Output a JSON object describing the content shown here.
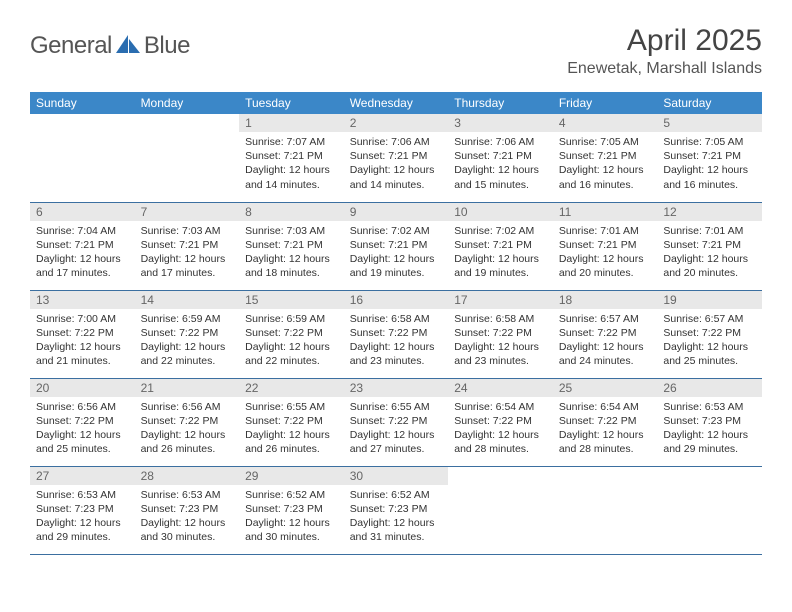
{
  "logo": {
    "general": "General",
    "blue": "Blue"
  },
  "title": "April 2025",
  "location": "Enewetak, Marshall Islands",
  "colors": {
    "header_bg": "#3b87c8",
    "header_text": "#ffffff",
    "daynum_bg": "#e8e8e8",
    "daynum_text": "#666666",
    "body_text": "#333333",
    "row_border": "#3b6fa0",
    "logo_text": "#555555",
    "logo_icon": "#2a6db0"
  },
  "day_names": [
    "Sunday",
    "Monday",
    "Tuesday",
    "Wednesday",
    "Thursday",
    "Friday",
    "Saturday"
  ],
  "weeks": [
    [
      null,
      null,
      {
        "n": "1",
        "sunrise": "7:07 AM",
        "sunset": "7:21 PM",
        "daylight": "12 hours and 14 minutes."
      },
      {
        "n": "2",
        "sunrise": "7:06 AM",
        "sunset": "7:21 PM",
        "daylight": "12 hours and 14 minutes."
      },
      {
        "n": "3",
        "sunrise": "7:06 AM",
        "sunset": "7:21 PM",
        "daylight": "12 hours and 15 minutes."
      },
      {
        "n": "4",
        "sunrise": "7:05 AM",
        "sunset": "7:21 PM",
        "daylight": "12 hours and 16 minutes."
      },
      {
        "n": "5",
        "sunrise": "7:05 AM",
        "sunset": "7:21 PM",
        "daylight": "12 hours and 16 minutes."
      }
    ],
    [
      {
        "n": "6",
        "sunrise": "7:04 AM",
        "sunset": "7:21 PM",
        "daylight": "12 hours and 17 minutes."
      },
      {
        "n": "7",
        "sunrise": "7:03 AM",
        "sunset": "7:21 PM",
        "daylight": "12 hours and 17 minutes."
      },
      {
        "n": "8",
        "sunrise": "7:03 AM",
        "sunset": "7:21 PM",
        "daylight": "12 hours and 18 minutes."
      },
      {
        "n": "9",
        "sunrise": "7:02 AM",
        "sunset": "7:21 PM",
        "daylight": "12 hours and 19 minutes."
      },
      {
        "n": "10",
        "sunrise": "7:02 AM",
        "sunset": "7:21 PM",
        "daylight": "12 hours and 19 minutes."
      },
      {
        "n": "11",
        "sunrise": "7:01 AM",
        "sunset": "7:21 PM",
        "daylight": "12 hours and 20 minutes."
      },
      {
        "n": "12",
        "sunrise": "7:01 AM",
        "sunset": "7:21 PM",
        "daylight": "12 hours and 20 minutes."
      }
    ],
    [
      {
        "n": "13",
        "sunrise": "7:00 AM",
        "sunset": "7:22 PM",
        "daylight": "12 hours and 21 minutes."
      },
      {
        "n": "14",
        "sunrise": "6:59 AM",
        "sunset": "7:22 PM",
        "daylight": "12 hours and 22 minutes."
      },
      {
        "n": "15",
        "sunrise": "6:59 AM",
        "sunset": "7:22 PM",
        "daylight": "12 hours and 22 minutes."
      },
      {
        "n": "16",
        "sunrise": "6:58 AM",
        "sunset": "7:22 PM",
        "daylight": "12 hours and 23 minutes."
      },
      {
        "n": "17",
        "sunrise": "6:58 AM",
        "sunset": "7:22 PM",
        "daylight": "12 hours and 23 minutes."
      },
      {
        "n": "18",
        "sunrise": "6:57 AM",
        "sunset": "7:22 PM",
        "daylight": "12 hours and 24 minutes."
      },
      {
        "n": "19",
        "sunrise": "6:57 AM",
        "sunset": "7:22 PM",
        "daylight": "12 hours and 25 minutes."
      }
    ],
    [
      {
        "n": "20",
        "sunrise": "6:56 AM",
        "sunset": "7:22 PM",
        "daylight": "12 hours and 25 minutes."
      },
      {
        "n": "21",
        "sunrise": "6:56 AM",
        "sunset": "7:22 PM",
        "daylight": "12 hours and 26 minutes."
      },
      {
        "n": "22",
        "sunrise": "6:55 AM",
        "sunset": "7:22 PM",
        "daylight": "12 hours and 26 minutes."
      },
      {
        "n": "23",
        "sunrise": "6:55 AM",
        "sunset": "7:22 PM",
        "daylight": "12 hours and 27 minutes."
      },
      {
        "n": "24",
        "sunrise": "6:54 AM",
        "sunset": "7:22 PM",
        "daylight": "12 hours and 28 minutes."
      },
      {
        "n": "25",
        "sunrise": "6:54 AM",
        "sunset": "7:22 PM",
        "daylight": "12 hours and 28 minutes."
      },
      {
        "n": "26",
        "sunrise": "6:53 AM",
        "sunset": "7:23 PM",
        "daylight": "12 hours and 29 minutes."
      }
    ],
    [
      {
        "n": "27",
        "sunrise": "6:53 AM",
        "sunset": "7:23 PM",
        "daylight": "12 hours and 29 minutes."
      },
      {
        "n": "28",
        "sunrise": "6:53 AM",
        "sunset": "7:23 PM",
        "daylight": "12 hours and 30 minutes."
      },
      {
        "n": "29",
        "sunrise": "6:52 AM",
        "sunset": "7:23 PM",
        "daylight": "12 hours and 30 minutes."
      },
      {
        "n": "30",
        "sunrise": "6:52 AM",
        "sunset": "7:23 PM",
        "daylight": "12 hours and 31 minutes."
      },
      null,
      null,
      null
    ]
  ],
  "labels": {
    "sunrise": "Sunrise:",
    "sunset": "Sunset:",
    "daylight": "Daylight:"
  }
}
